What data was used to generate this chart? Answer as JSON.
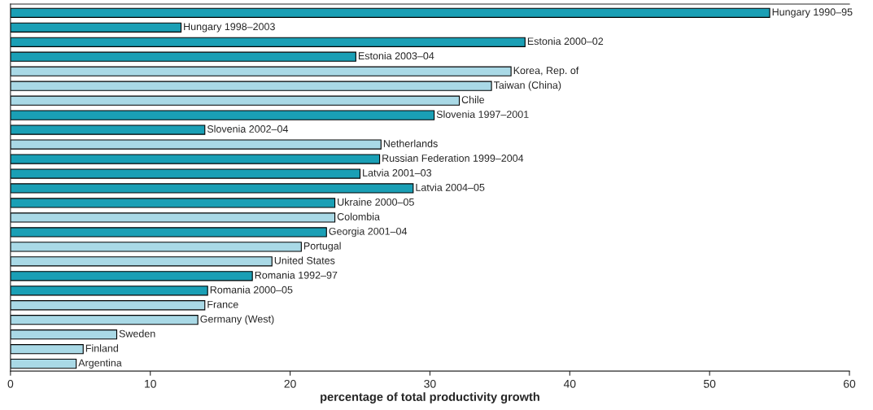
{
  "chart_data": {
    "type": "bar",
    "orientation": "horizontal",
    "xlabel": "percentage of total productivity growth",
    "categories": [
      "Hungary 1990–95",
      "Hungary 1998–2003",
      "Estonia 2000–02",
      "Estonia 2003–04",
      "Korea, Rep. of",
      "Taiwan (China)",
      "Chile",
      "Slovenia 1997–2001",
      "Slovenia 2002–04",
      "Netherlands",
      "Russian Federation 1999–2004",
      "Latvia 2001–03",
      "Latvia 2004–05",
      "Ukraine 2000–05",
      "Colombia",
      "Georgia 2001–04",
      "Portugal",
      "United States",
      "Romania 1992–97",
      "Romania 2000–05",
      "France",
      "Germany (West)",
      "Sweden",
      "Finland",
      "Argentina"
    ],
    "values": [
      54.3,
      12.2,
      36.8,
      24.7,
      35.8,
      34.4,
      32.1,
      30.3,
      13.9,
      26.5,
      26.4,
      25.0,
      28.8,
      23.2,
      23.2,
      22.6,
      20.8,
      18.7,
      17.3,
      14.1,
      13.9,
      13.4,
      7.6,
      5.2,
      4.7
    ],
    "colors": [
      "#1a9fb5",
      "#1a9fb5",
      "#1a9fb5",
      "#1a9fb5",
      "#a9d9e6",
      "#a9d9e6",
      "#a9d9e6",
      "#1a9fb5",
      "#1a9fb5",
      "#a9d9e6",
      "#1a9fb5",
      "#1a9fb5",
      "#1a9fb5",
      "#1a9fb5",
      "#a9d9e6",
      "#1a9fb5",
      "#a9d9e6",
      "#a9d9e6",
      "#1a9fb5",
      "#1a9fb5",
      "#a9d9e6",
      "#a9d9e6",
      "#a9d9e6",
      "#a9d9e6",
      "#a9d9e6"
    ],
    "xlim": [
      0,
      60
    ],
    "xticks": [
      0,
      10,
      20,
      30,
      40,
      50,
      60
    ],
    "tick_labels": "x",
    "grid": false,
    "legend": false
  }
}
